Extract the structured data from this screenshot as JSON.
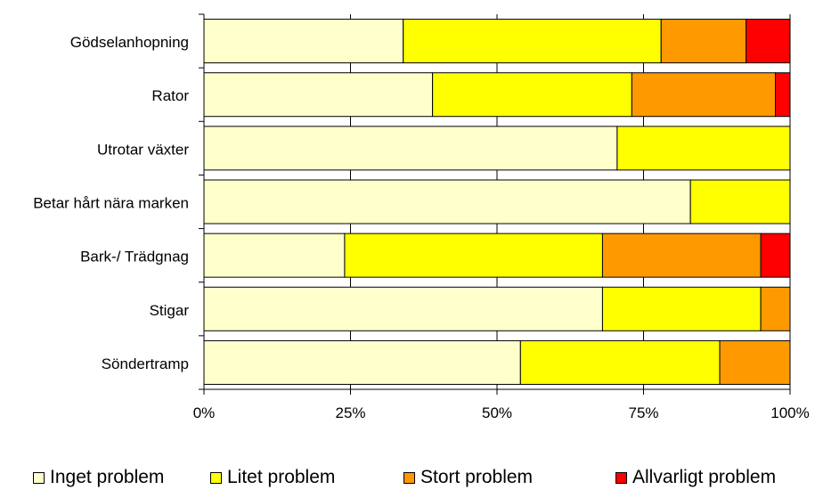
{
  "chart_data": {
    "type": "bar",
    "orientation": "horizontal",
    "stacked": "percent",
    "categories": [
      "Gödselanhopning",
      "Rator",
      "Utrotar växter",
      "Betar hårt nära marken",
      "Bark-/ Trädgnag",
      "Stigar",
      "Söndertramp"
    ],
    "series": [
      {
        "name": "Inget problem",
        "color": "#FFFFCC",
        "values": [
          34,
          39,
          70.5,
          83,
          24,
          68,
          54
        ]
      },
      {
        "name": "Litet problem",
        "color": "#FFFF00",
        "values": [
          44,
          34,
          29.5,
          17,
          44,
          27,
          34
        ]
      },
      {
        "name": "Stort problem",
        "color": "#FF9900",
        "values": [
          14.5,
          24.5,
          0,
          0,
          27,
          5,
          12
        ]
      },
      {
        "name": "Allvarligt problem",
        "color": "#FF0000",
        "values": [
          7.5,
          2.5,
          0,
          0,
          5,
          0,
          0
        ]
      }
    ],
    "xticks": [
      "0%",
      "25%",
      "50%",
      "75%",
      "100%"
    ],
    "xlim": [
      0,
      100
    ],
    "grid": true,
    "legend_position": "bottom"
  }
}
